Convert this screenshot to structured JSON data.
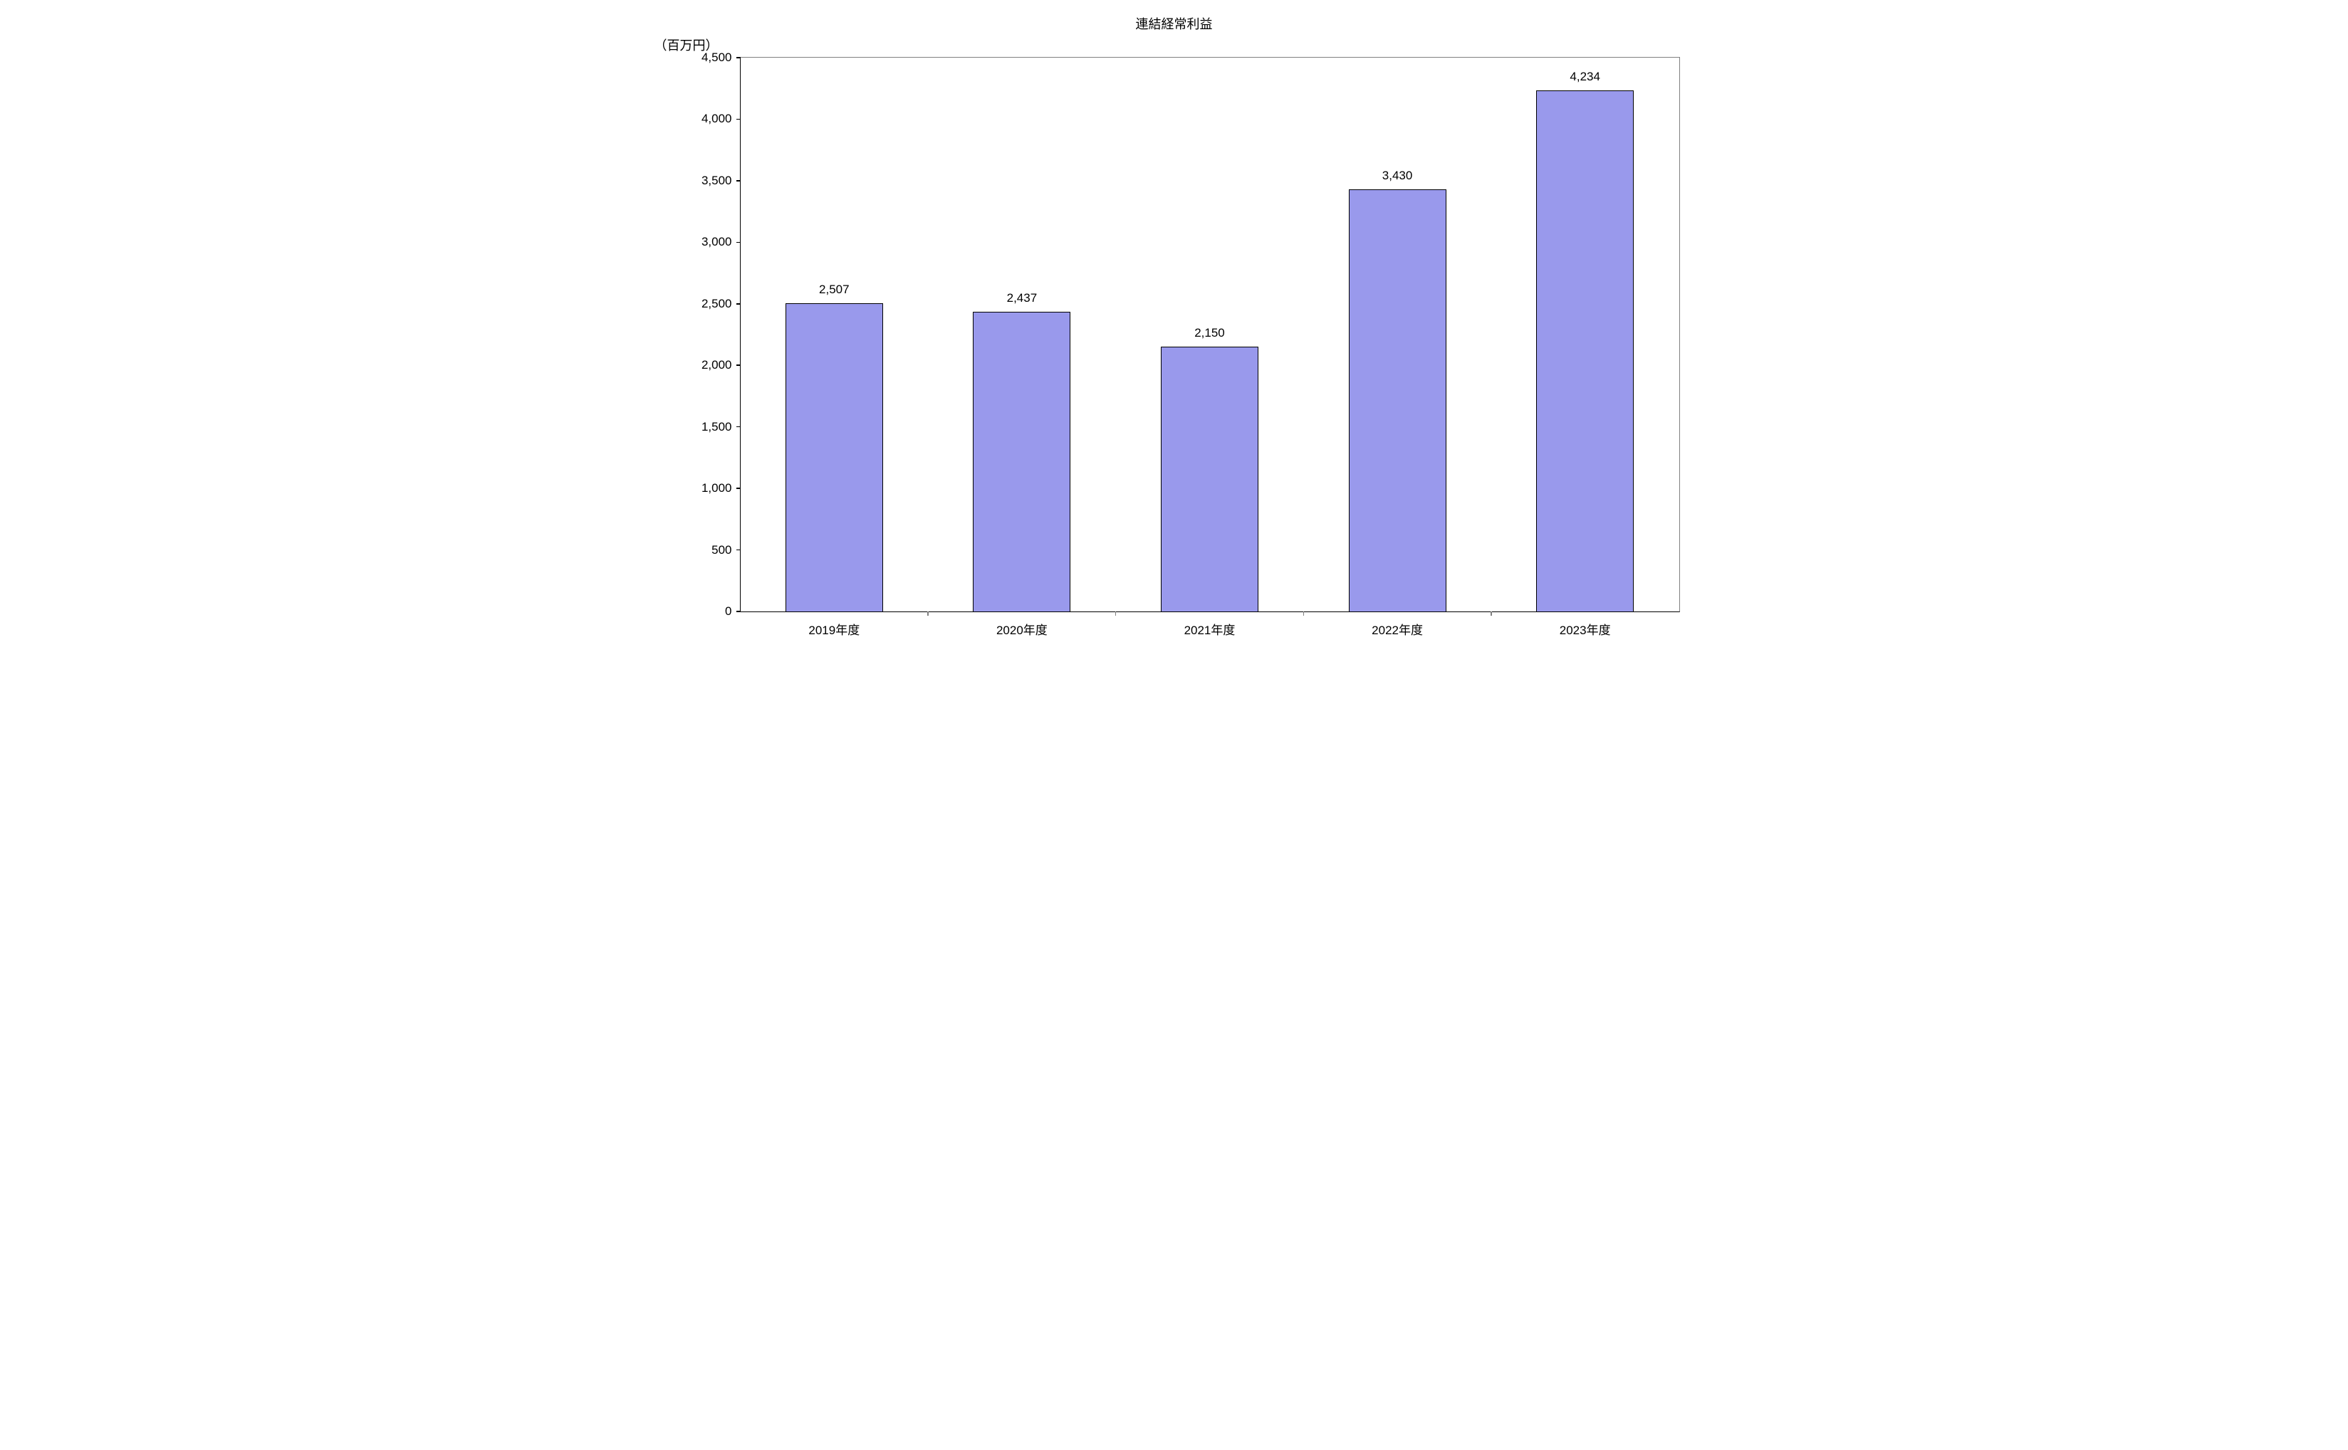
{
  "chart": {
    "type": "bar",
    "title": "連結経常利益",
    "y_axis_label": "（百万円）",
    "categories": [
      "2019年度",
      "2020年度",
      "2021年度",
      "2022年度",
      "2023年度"
    ],
    "values": [
      2507,
      2437,
      2150,
      3430,
      4234
    ],
    "value_labels": [
      "2,507",
      "2,437",
      "2,150",
      "3,430",
      "4,234"
    ],
    "bar_color": "#9999ec",
    "bar_border_color": "#000000",
    "plot_border_color": "#808080",
    "axis_color": "#000000",
    "background_color": "#ffffff",
    "ylim": [
      0,
      4500
    ],
    "ytick_step": 500,
    "ytick_labels": [
      "0",
      "500",
      "1,000",
      "1,500",
      "2,000",
      "2,500",
      "3,000",
      "3,500",
      "4,000",
      "4,500"
    ],
    "title_fontsize": 18,
    "label_fontsize": 17,
    "bar_width_ratio": 0.52
  }
}
